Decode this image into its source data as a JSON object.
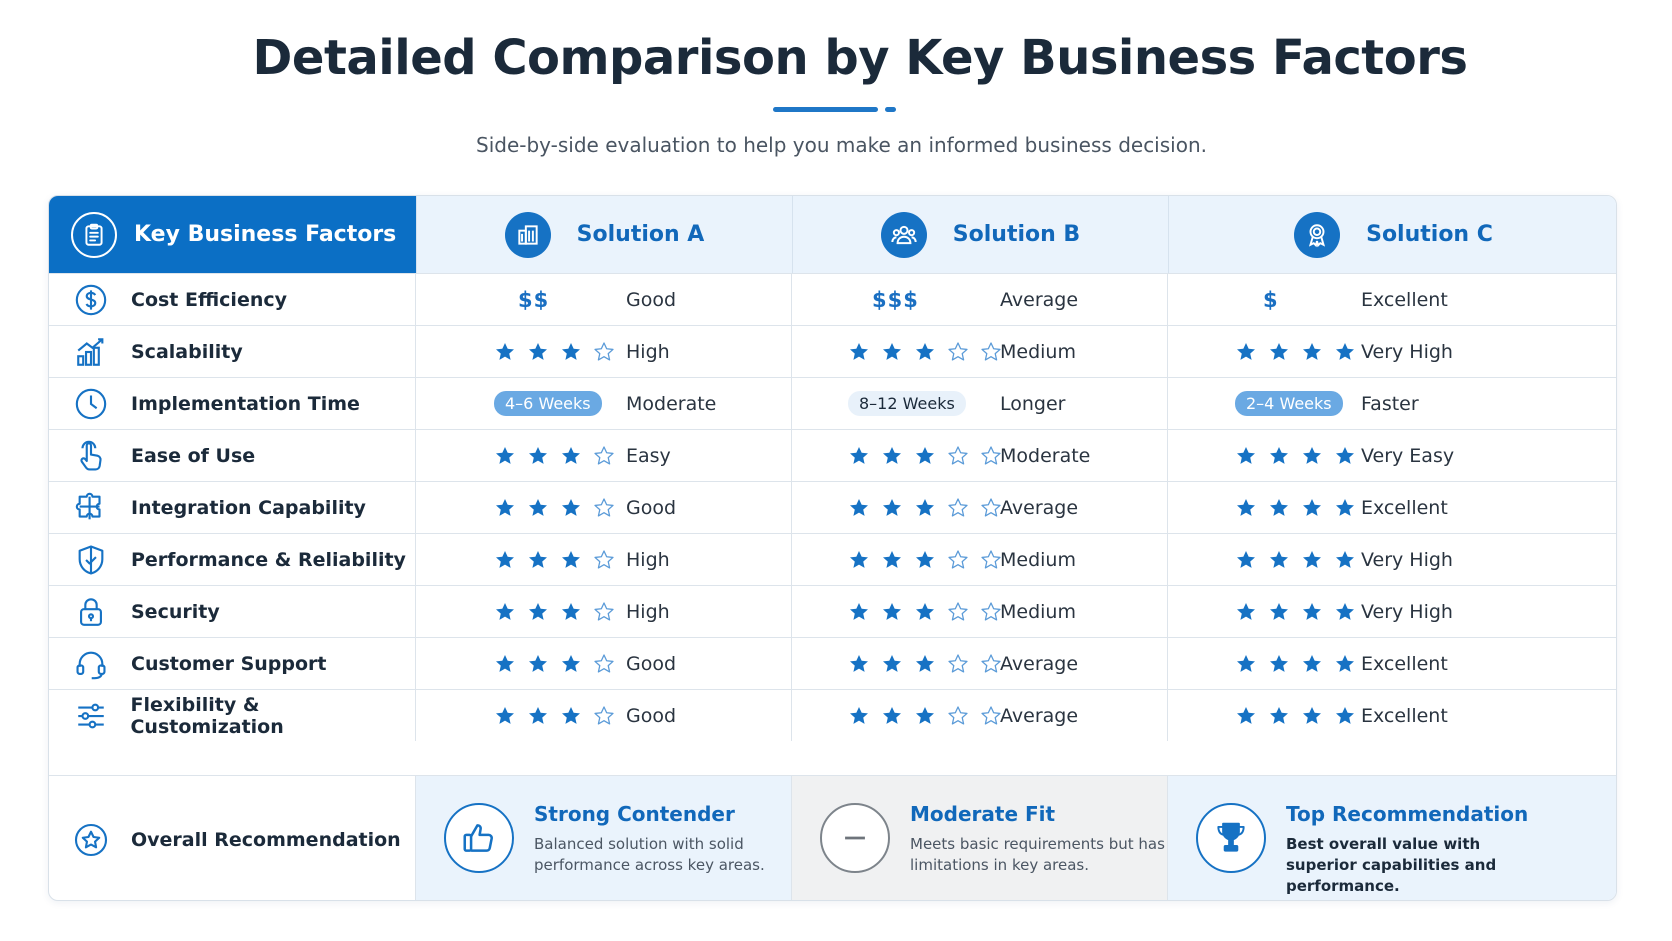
{
  "title": "Detailed Comparison by Key Business Factors",
  "subtitle": "Side-by-side evaluation to help you make an informed business decision.",
  "colors": {
    "accent": "#0b6fc5",
    "star": "#1672c4",
    "header_bg": "#eaf3fc",
    "muted_bg": "#f0f1f2"
  },
  "headers": {
    "factors": {
      "label": "Key Business Factors",
      "icon": "clipboard-icon"
    },
    "solutions": [
      {
        "label": "Solution A",
        "icon": "building-icon"
      },
      {
        "label": "Solution B",
        "icon": "team-icon"
      },
      {
        "label": "Solution C",
        "icon": "award-icon"
      }
    ]
  },
  "rows": [
    {
      "label": "Cost Efficiency",
      "icon": "dollar-circle-icon",
      "type": "dollar",
      "cells": [
        {
          "value": "$$",
          "rating": "Good"
        },
        {
          "value": "$$$",
          "rating": "Average"
        },
        {
          "value": "$",
          "rating": "Excellent"
        }
      ]
    },
    {
      "label": "Scalability",
      "icon": "growth-chart-icon",
      "type": "stars",
      "cells": [
        {
          "stars": 3,
          "outline": 1,
          "rating": "High"
        },
        {
          "stars": 3,
          "outline": 2,
          "rating": "Medium"
        },
        {
          "stars": 4,
          "outline": 0,
          "rating": "Very High"
        }
      ]
    },
    {
      "label": "Implementation Time",
      "icon": "clock-icon",
      "type": "pill",
      "cells": [
        {
          "value": "4–6 Weeks",
          "style": "blue",
          "rating": "Moderate"
        },
        {
          "value": "8–12 Weeks",
          "style": "light",
          "rating": "Longer"
        },
        {
          "value": "2–4 Weeks",
          "style": "blue",
          "rating": "Faster"
        }
      ]
    },
    {
      "label": "Ease of Use",
      "icon": "hand-pointer-icon",
      "type": "stars",
      "cells": [
        {
          "stars": 3,
          "outline": 1,
          "rating": "Easy"
        },
        {
          "stars": 3,
          "outline": 2,
          "rating": "Moderate"
        },
        {
          "stars": 4,
          "outline": 0,
          "rating": "Very Easy"
        }
      ]
    },
    {
      "label": "Integration Capability",
      "icon": "puzzle-icon",
      "type": "stars",
      "cells": [
        {
          "stars": 3,
          "outline": 1,
          "rating": "Good"
        },
        {
          "stars": 3,
          "outline": 2,
          "rating": "Average"
        },
        {
          "stars": 4,
          "outline": 0,
          "rating": "Excellent"
        }
      ]
    },
    {
      "label": "Performance & Reliability",
      "icon": "shield-icon",
      "type": "stars",
      "cells": [
        {
          "stars": 3,
          "outline": 1,
          "rating": "High"
        },
        {
          "stars": 3,
          "outline": 2,
          "rating": "Medium"
        },
        {
          "stars": 4,
          "outline": 0,
          "rating": "Very High"
        }
      ]
    },
    {
      "label": "Security",
      "icon": "lock-icon",
      "type": "stars",
      "cells": [
        {
          "stars": 3,
          "outline": 1,
          "rating": "High"
        },
        {
          "stars": 3,
          "outline": 2,
          "rating": "Medium"
        },
        {
          "stars": 4,
          "outline": 0,
          "rating": "Very High"
        }
      ]
    },
    {
      "label": "Customer Support",
      "icon": "headset-icon",
      "type": "stars",
      "cells": [
        {
          "stars": 3,
          "outline": 1,
          "rating": "Good"
        },
        {
          "stars": 3,
          "outline": 2,
          "rating": "Average"
        },
        {
          "stars": 4,
          "outline": 0,
          "rating": "Excellent"
        }
      ]
    },
    {
      "label": "Flexibility & Customization",
      "icon": "sliders-icon",
      "type": "stars",
      "cells": [
        {
          "stars": 3,
          "outline": 1,
          "rating": "Good"
        },
        {
          "stars": 3,
          "outline": 2,
          "rating": "Average"
        },
        {
          "stars": 4,
          "outline": 0,
          "rating": "Excellent"
        }
      ]
    }
  ],
  "recommendation": {
    "label": "Overall Recommendation",
    "icon": "star-circle-icon",
    "items": [
      {
        "title": "Strong Contender",
        "desc": "Balanced solution with solid performance across key areas.",
        "icon": "thumbs-up-icon",
        "title_color": "#1168ba"
      },
      {
        "title": "Moderate Fit",
        "desc": "Meets basic requirements but has limitations in key areas.",
        "icon": "minus-circle-icon",
        "title_color": "#1168ba"
      },
      {
        "title": "Top Recommendation",
        "desc": "Best overall value with superior capabilities and performance.",
        "icon": "trophy-icon",
        "title_color": "#1168ba"
      }
    ]
  }
}
